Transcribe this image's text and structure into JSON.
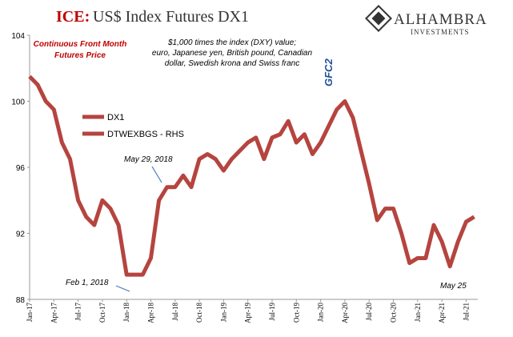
{
  "chart_data": {
    "type": "line",
    "title_prefix": "ICE:",
    "title": "US$ Index Futures DX1",
    "logo": {
      "name": "ALHAMBRA",
      "tagline": "INVESTMENTS"
    },
    "annotations": {
      "subtitle_left": [
        "Continuous  Front Month",
        "Futures Price"
      ],
      "subtitle_right": [
        "$1,000 times the index (DXY) value;",
        "euro, Japanese yen, British pound, Canadian",
        "dollar, Swedish krona and Swiss franc"
      ],
      "gfc": "GFC2",
      "may2018": "May 29, 2018",
      "feb2018": "Feb 1, 2018",
      "may25": "May 25"
    },
    "legend": [
      "DX1",
      "DTWEXBGS - RHS"
    ],
    "categories": [
      "Jan-17",
      null,
      null,
      "Apr-17",
      null,
      null,
      "Jul-17",
      null,
      null,
      "Oct-17",
      null,
      null,
      "Jan-18",
      null,
      null,
      "Apr-18",
      null,
      null,
      "Jul-18",
      null,
      null,
      "Oct-18",
      null,
      null,
      "Jan-19",
      null,
      null,
      "Apr-19",
      null,
      null,
      "Jul-19",
      null,
      null,
      "Oct-19",
      null,
      null,
      "Jan-20",
      null,
      null,
      "Apr-20",
      null,
      null,
      "Jul-20",
      null,
      null,
      "Oct-20",
      null,
      null,
      "Jan-21",
      null,
      null,
      "Apr-21",
      null,
      null,
      "Jul-21",
      null
    ],
    "series": [
      {
        "name": "DX1",
        "color": "#b5443f",
        "values": [
          101.5,
          101,
          100,
          99.5,
          97.5,
          96.5,
          94,
          93,
          92.5,
          94,
          93.5,
          92.5,
          89.5,
          89.5,
          89.5,
          90.5,
          94,
          94.8,
          94.8,
          95.5,
          94.8,
          96.5,
          96.8,
          96.5,
          95.8,
          96.5,
          97,
          97.5,
          97.8,
          96.5,
          97.8,
          98,
          98.8,
          97.5,
          98,
          96.8,
          97.5,
          98.5,
          99.5,
          100,
          99,
          97,
          95,
          92.8,
          93.5,
          93.5,
          92,
          90.2,
          90.5,
          90.5,
          92.5,
          91.5,
          90,
          91.5,
          92.7,
          93
        ]
      }
    ],
    "ylim": [
      88,
      104
    ],
    "yticks": [
      88,
      92,
      96,
      100,
      104
    ]
  }
}
